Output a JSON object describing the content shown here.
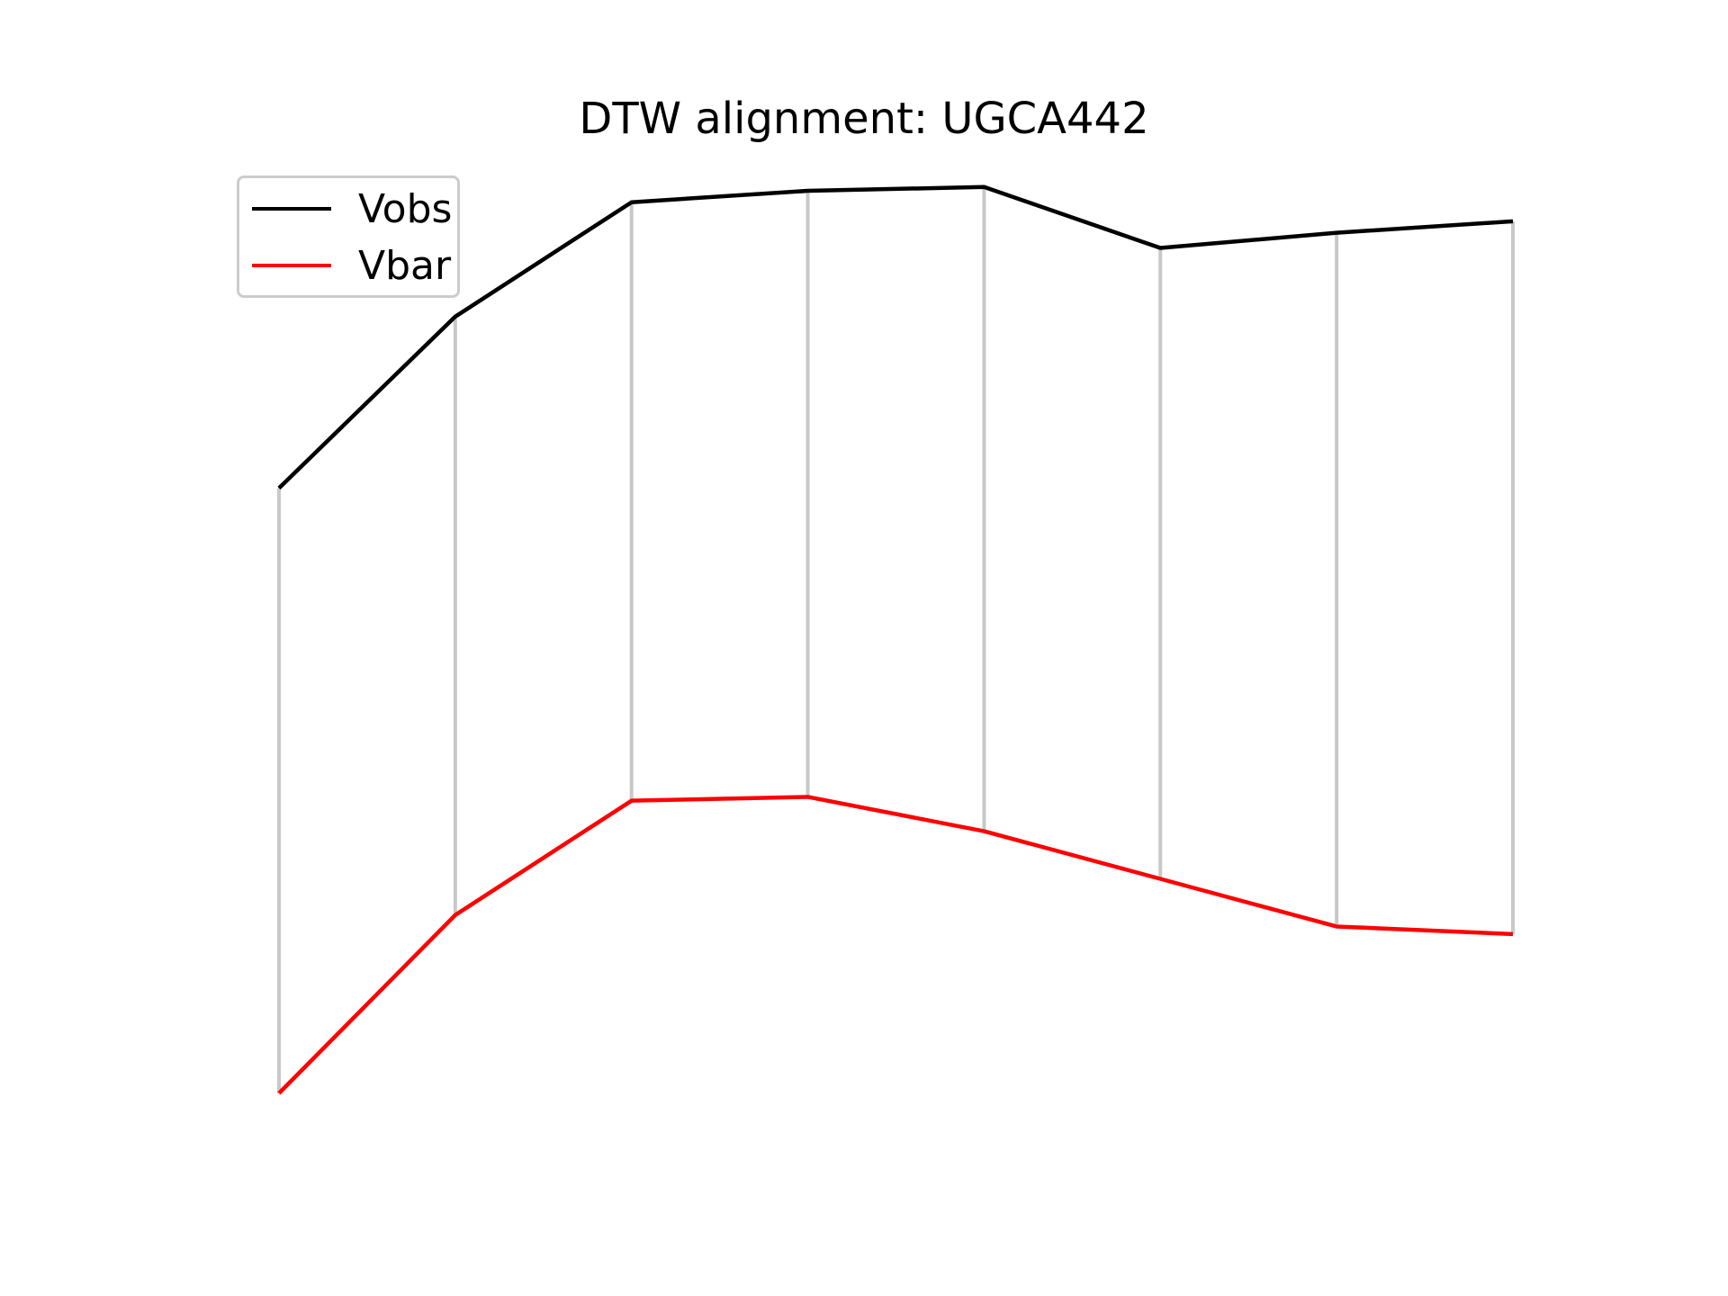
{
  "chart_data": {
    "type": "line",
    "title": "DTW alignment: UGCA442",
    "xlabel": "",
    "ylabel": "",
    "axes_visible": false,
    "grid": false,
    "legend_position": "top-left",
    "x": [
      0,
      1,
      2,
      3,
      4,
      5,
      6,
      7
    ],
    "series": [
      {
        "name": "Vobs",
        "color": "#000000",
        "values": [
          34.0,
          52.0,
          64.0,
          65.2,
          65.6,
          59.2,
          60.8,
          62.0
        ]
      },
      {
        "name": "Vbar",
        "color": "#ff0000",
        "values": [
          -29.5,
          -10.8,
          1.2,
          1.6,
          -2.0,
          -7.0,
          -12.0,
          -12.8
        ]
      }
    ],
    "alignment_color": "#c8c8c8",
    "alignment_pairs": [
      [
        0,
        0
      ],
      [
        1,
        1
      ],
      [
        2,
        2
      ],
      [
        3,
        3
      ],
      [
        4,
        4
      ],
      [
        5,
        5
      ],
      [
        6,
        6
      ],
      [
        7,
        7
      ]
    ],
    "ylim": [
      -35,
      72
    ]
  }
}
